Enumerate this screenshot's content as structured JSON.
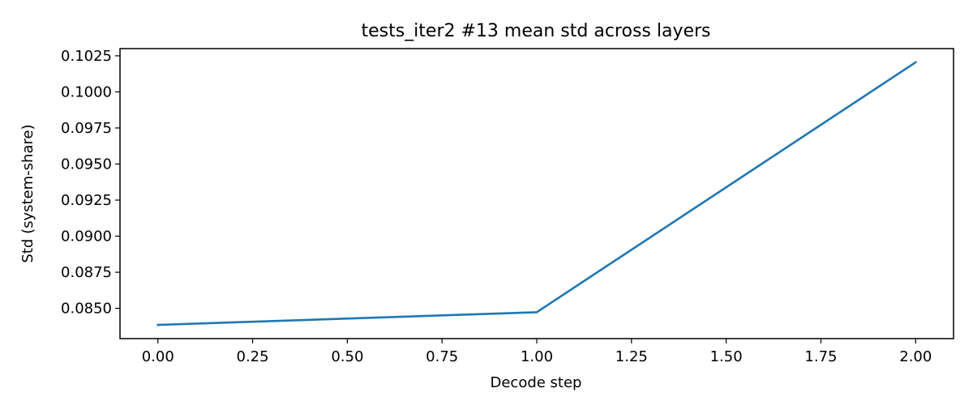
{
  "chart_data": {
    "type": "line",
    "title": "tests_iter2 #13 mean std across layers",
    "xlabel": "Decode step",
    "ylabel": "Std (system-share)",
    "x": [
      0,
      1,
      2
    ],
    "series": [
      {
        "values": [
          0.08385,
          0.08473,
          0.10205
        ],
        "color": "#1f77b4"
      }
    ],
    "xlim": [
      -0.1,
      2.1
    ],
    "ylim": [
      0.0829,
      0.103
    ],
    "xticks": [
      0,
      0.25,
      0.5,
      0.75,
      1.0,
      1.25,
      1.5,
      1.75,
      2.0
    ],
    "xtick_labels": [
      "0.00",
      "0.25",
      "0.50",
      "0.75",
      "1.00",
      "1.25",
      "1.50",
      "1.75",
      "2.00"
    ],
    "yticks": [
      0.085,
      0.0875,
      0.09,
      0.0925,
      0.095,
      0.0975,
      0.1,
      0.1025
    ],
    "ytick_labels": [
      "0.0850",
      "0.0875",
      "0.0900",
      "0.0925",
      "0.0950",
      "0.0975",
      "0.1000",
      "0.1025"
    ],
    "grid": false,
    "legend": false
  }
}
